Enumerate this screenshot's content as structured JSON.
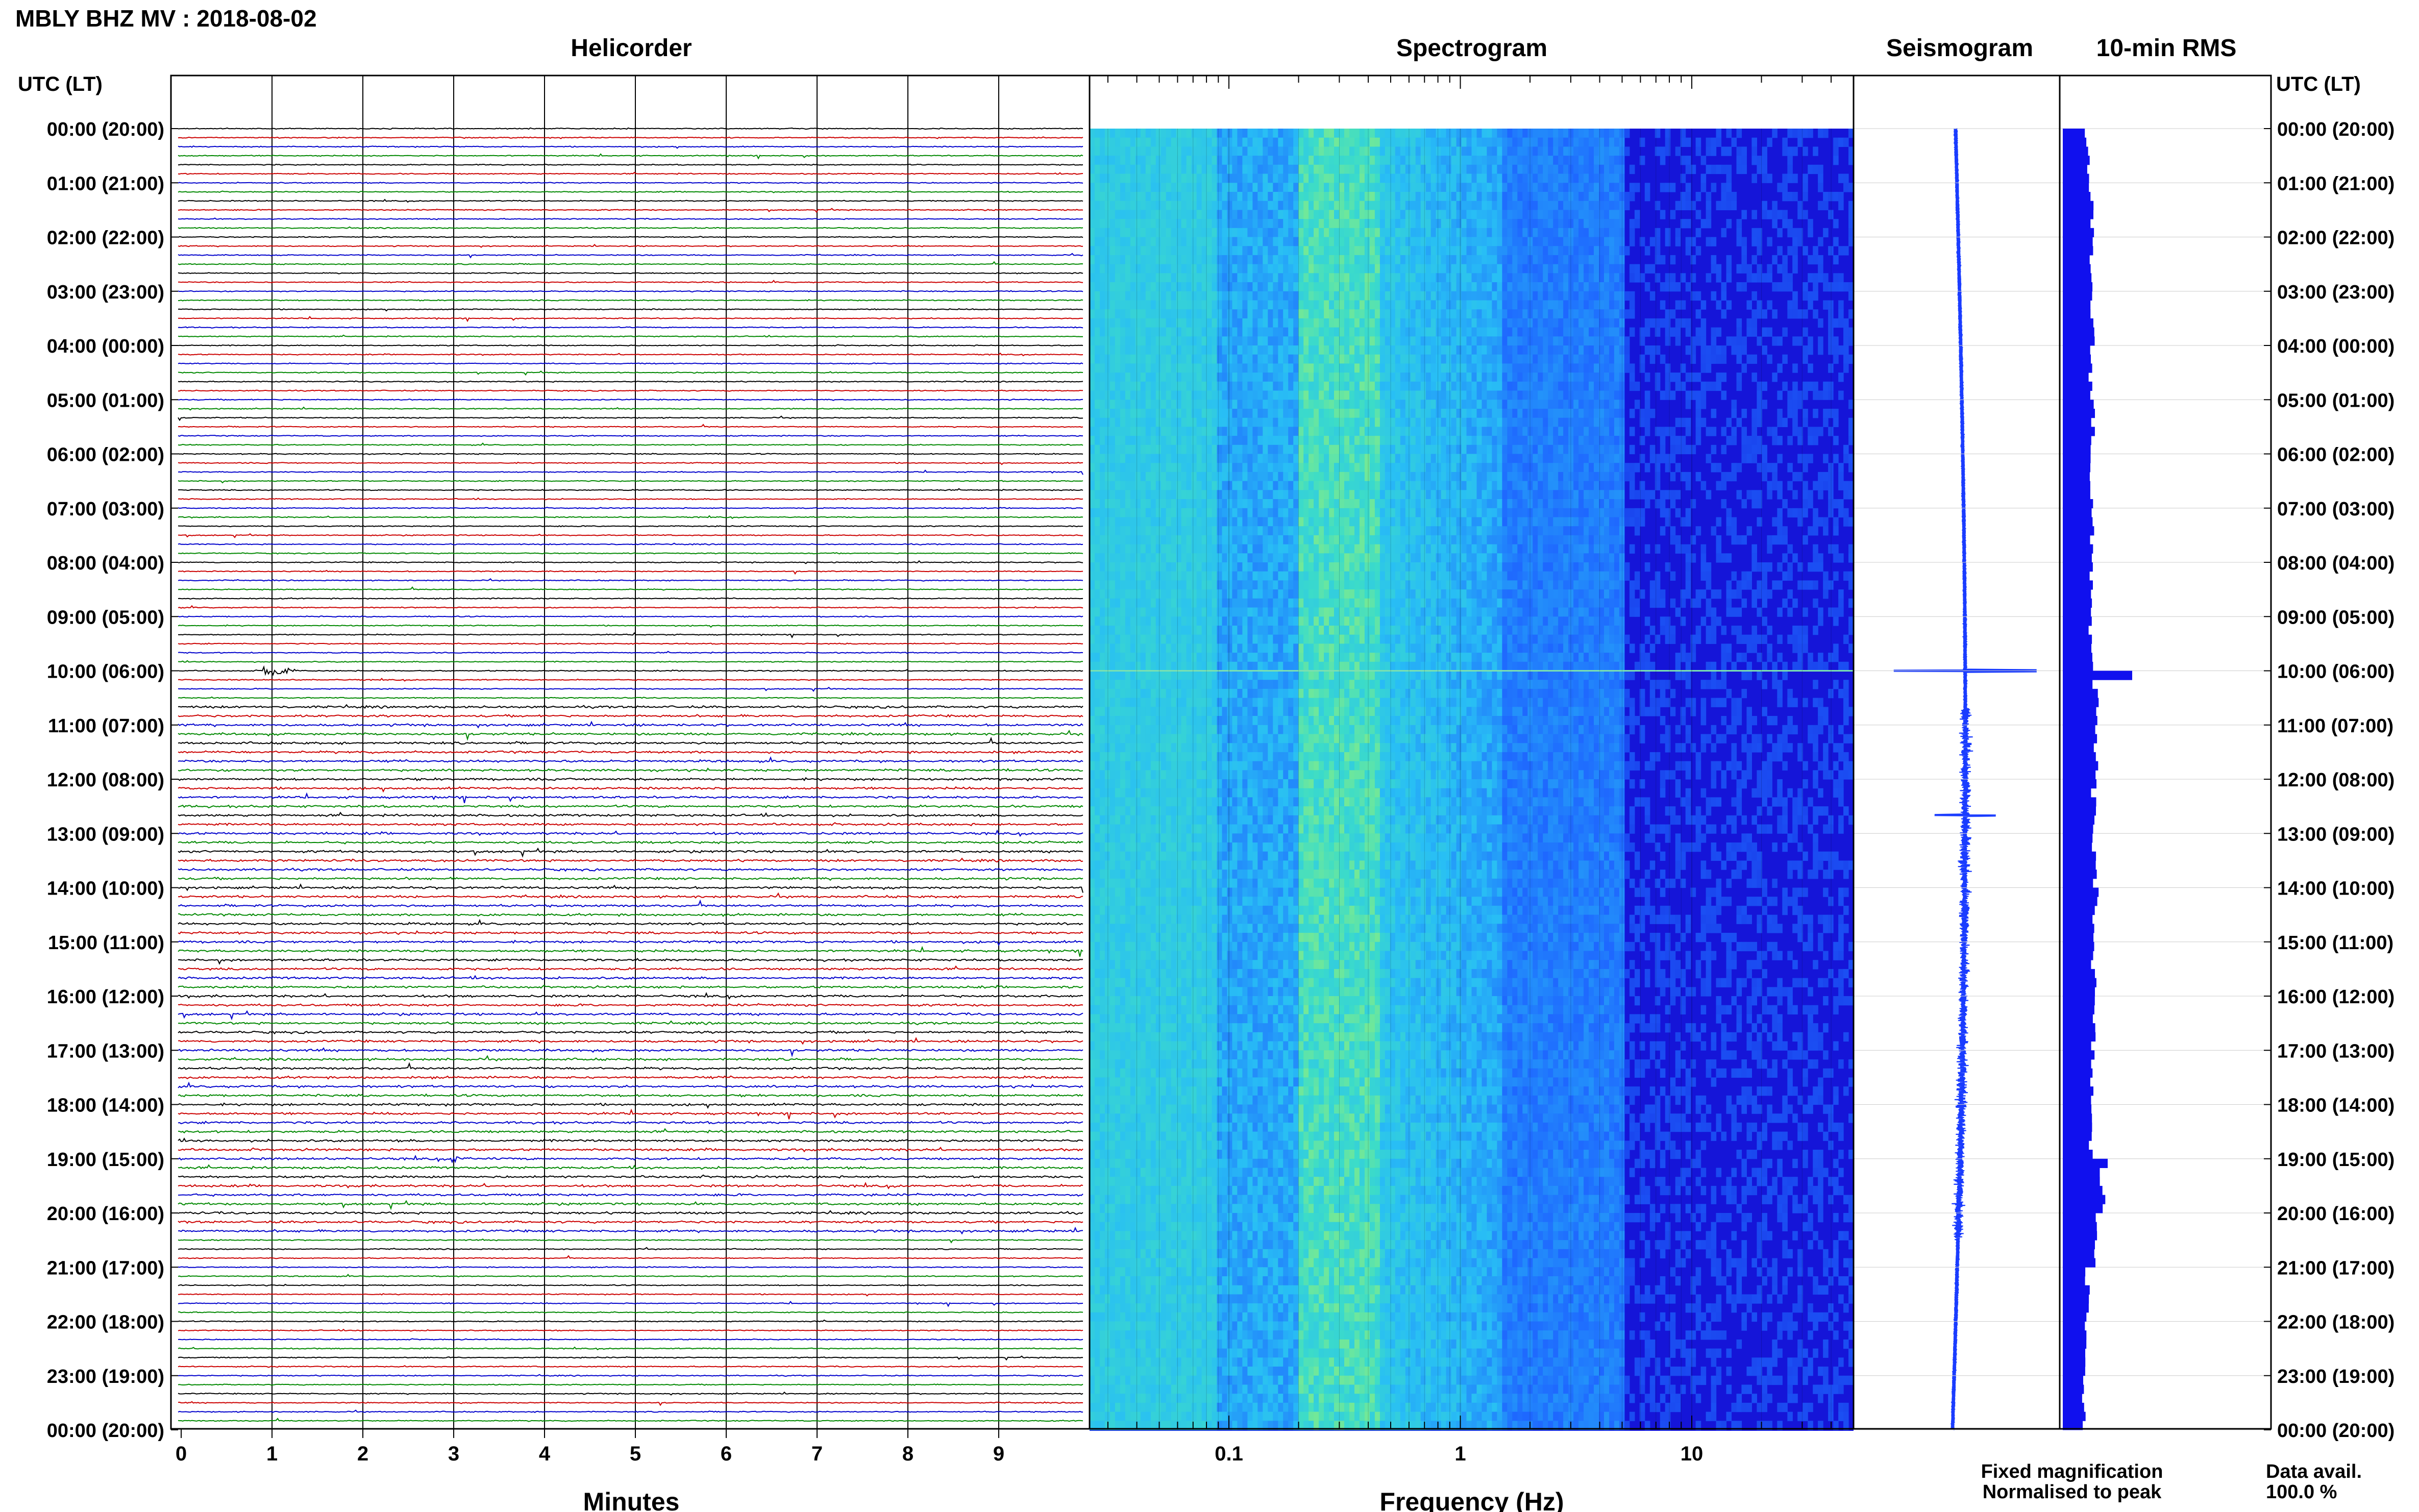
{
  "header": {
    "station_title": "MBLY BHZ MV : 2018-08-02",
    "utc_label_left": "UTC (LT)",
    "utc_label_right": "UTC (LT)"
  },
  "panels": {
    "helicorder": "Helicorder",
    "spectrogram": "Spectrogram",
    "seismogram": "Seismogram",
    "rms": "10-min RMS"
  },
  "time_labels": [
    "00:00 (20:00)",
    "01:00 (21:00)",
    "02:00 (22:00)",
    "03:00 (23:00)",
    "04:00 (00:00)",
    "05:00 (01:00)",
    "06:00 (02:00)",
    "07:00 (03:00)",
    "08:00 (04:00)",
    "09:00 (05:00)",
    "10:00 (06:00)",
    "11:00 (07:00)",
    "12:00 (08:00)",
    "13:00 (09:00)",
    "14:00 (10:00)",
    "15:00 (11:00)",
    "16:00 (12:00)",
    "17:00 (13:00)",
    "18:00 (14:00)",
    "19:00 (15:00)",
    "20:00 (16:00)",
    "21:00 (17:00)",
    "22:00 (18:00)",
    "23:00 (19:00)",
    "00:00 (20:00)"
  ],
  "footer": {
    "legend_fixed": "Fixed magnification",
    "legend_normalised": "Normalised to peak",
    "data_avail_label": "Data avail.",
    "data_avail_value": "100.0 %"
  },
  "colors": {
    "trace_cycle": [
      "#000000",
      "#cc0000",
      "#0000cc",
      "#008800"
    ],
    "fixed_magnification": "#0000ff",
    "normalised_to_peak": "#ff0000",
    "seismogram": "#1a3cff",
    "rms_bar": "#1010ee",
    "spec_low": "#1515d8",
    "spec_mid": "#1e64ff",
    "spec_cyan": "#2ad2f0",
    "spec_hot": "#58e0a0"
  },
  "chart_data": [
    {
      "type": "line",
      "panel": "helicorder",
      "title": "Helicorder",
      "xlabel": "Minutes",
      "x_ticks": [
        0,
        1,
        2,
        3,
        4,
        5,
        6,
        7,
        8,
        9
      ],
      "xlim": [
        0,
        10
      ],
      "rows_per_hour": 6,
      "row_minutes": 10,
      "hours": 24,
      "events": [
        {
          "time_utc": "10:00",
          "minute": 0.95,
          "amplitude": "large"
        },
        {
          "time_utc": "19:00",
          "minute": 3.0,
          "amplitude": "moderate"
        }
      ]
    },
    {
      "type": "heatmap",
      "panel": "spectrogram",
      "title": "Spectrogram",
      "xlabel": "Frequency (Hz)",
      "x_scale": "log",
      "xlim": [
        0.025,
        50
      ],
      "x_tick_labels": [
        "0.1",
        "1",
        "10"
      ],
      "x_tick_values": [
        0.1,
        1,
        10
      ],
      "peak_band_hz": [
        0.2,
        0.4
      ]
    },
    {
      "type": "line",
      "panel": "seismogram",
      "title": "Seismogram",
      "hours": 24,
      "spike_times_utc": [
        "10:00",
        "12:40"
      ]
    },
    {
      "type": "bar",
      "panel": "rms",
      "title": "10-min RMS",
      "interval_minutes": 10,
      "units": "relative",
      "hourly_rms": [
        0.3,
        0.35,
        0.34,
        0.36,
        0.35,
        0.37,
        0.35,
        0.35,
        0.36,
        0.34,
        0.4,
        0.4,
        0.38,
        0.38,
        0.4,
        0.38,
        0.37,
        0.36,
        0.34,
        0.48,
        0.42,
        0.3,
        0.28,
        0.26
      ],
      "peaks": [
        {
          "time_utc": "10:00",
          "value": 0.85
        },
        {
          "time_utc": "19:00",
          "value": 0.55
        }
      ]
    }
  ]
}
